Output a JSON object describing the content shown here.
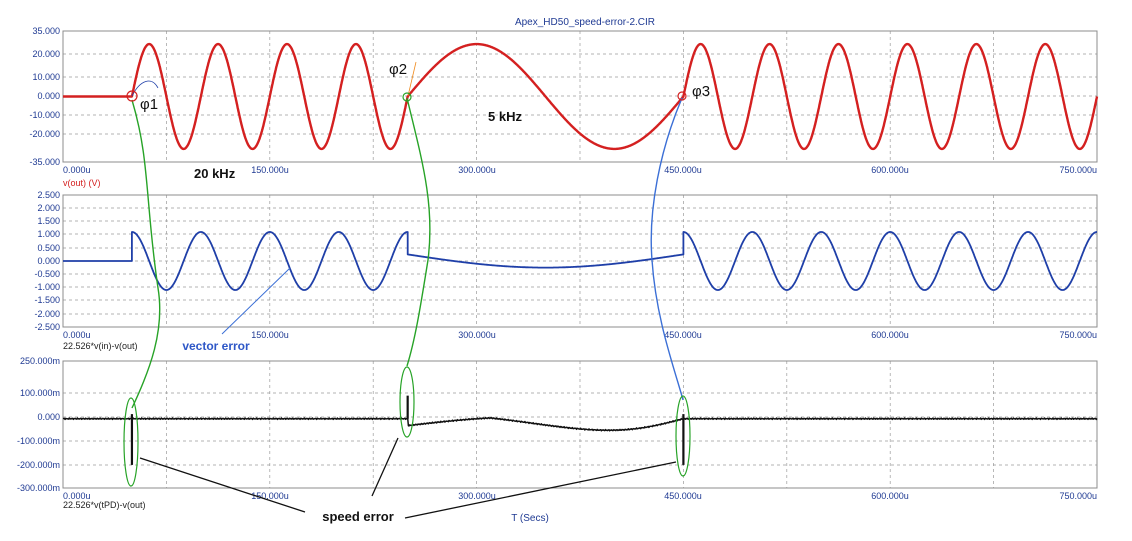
{
  "title": "Apex_HD50_speed-error-2.CIR",
  "x_axis_label": "T (Secs)",
  "x_tick_labels": [
    "0.000u",
    "150.000u",
    "300.000u",
    "450.000u",
    "600.000u",
    "750.000u"
  ],
  "colors": {
    "trace1": "#d42020",
    "trace2": "#1f3fa8",
    "trace3": "#111111",
    "ellipse": "#27a327",
    "axis_text": "#1f3a93"
  },
  "annotations": {
    "phi1": "φ1",
    "phi2": "φ2",
    "phi3": "φ3",
    "freq_20k": "20 kHz",
    "freq_5k": "5 kHz",
    "vector_error": "vector error",
    "speed_error": "speed error"
  },
  "chart_data": [
    {
      "type": "line",
      "title": "",
      "series": [
        {
          "name": "v(out) (V)",
          "color": "#d42020",
          "amplitude": 28,
          "segments": [
            {
              "x": [
                0,
                50
              ],
              "kind": "flat",
              "value": 0
            },
            {
              "x": [
                50,
                250
              ],
              "kind": "sine",
              "freq_khz": 20
            },
            {
              "x": [
                250,
                450
              ],
              "kind": "sine",
              "freq_khz": 5
            },
            {
              "x": [
                450,
                750
              ],
              "kind": "sine",
              "freq_khz": 20
            }
          ]
        }
      ],
      "ylabel": "v(out) (V)",
      "xlim": [
        0,
        750
      ],
      "ylim": [
        -35,
        35
      ],
      "y_tick_labels": [
        "35.000",
        "20.000",
        "10.000",
        "0.000",
        "-10.000",
        "-20.000",
        "-35.000"
      ],
      "grid": true
    },
    {
      "type": "line",
      "title": "",
      "series": [
        {
          "name": "22.526*v(in)-v(out)",
          "color": "#1f3fa8",
          "amplitude": 1.1,
          "segments": [
            {
              "x": [
                0,
                50
              ],
              "kind": "flat",
              "value": 0
            },
            {
              "x": [
                50,
                250
              ],
              "kind": "cosine",
              "freq_khz": 20
            },
            {
              "x": [
                250,
                450
              ],
              "kind": "slow",
              "start": 0.25,
              "min": -0.25,
              "end": 0.25
            },
            {
              "x": [
                450,
                750
              ],
              "kind": "cosine",
              "freq_khz": 20
            }
          ]
        }
      ],
      "ylabel": "22.526*v(in)-v(out)",
      "xlim": [
        0,
        750
      ],
      "ylim": [
        -2.5,
        2.5
      ],
      "y_tick_labels": [
        "2.500",
        "2.000",
        "1.500",
        "1.000",
        "0.500",
        "0.000",
        "-0.500",
        "-1.000",
        "-1.500",
        "-2.000",
        "-2.500"
      ],
      "grid": true
    },
    {
      "type": "line",
      "title": "",
      "series": [
        {
          "name": "22.526*v(tPD)-v(out)",
          "color": "#111111",
          "spikes": [
            {
              "x": 50,
              "min": -0.2,
              "max": 0.02
            },
            {
              "x": 250,
              "min": 0.0,
              "max": 0.1
            },
            {
              "x": 450,
              "min": -0.2,
              "max": 0.02
            }
          ],
          "slow_segment": {
            "x": [
              250,
              450
            ],
            "start": -0.03,
            "peak": 0.02,
            "trough": -0.03
          }
        }
      ],
      "ylabel": "22.526*v(tPD)-v(out)",
      "xlim": [
        0,
        750
      ],
      "ylim": [
        -0.3,
        0.25
      ],
      "y_tick_labels": [
        "250.000m",
        "100.000m",
        "0.000",
        "-100.000m",
        "-200.000m",
        "-300.000m"
      ],
      "grid": true
    }
  ]
}
